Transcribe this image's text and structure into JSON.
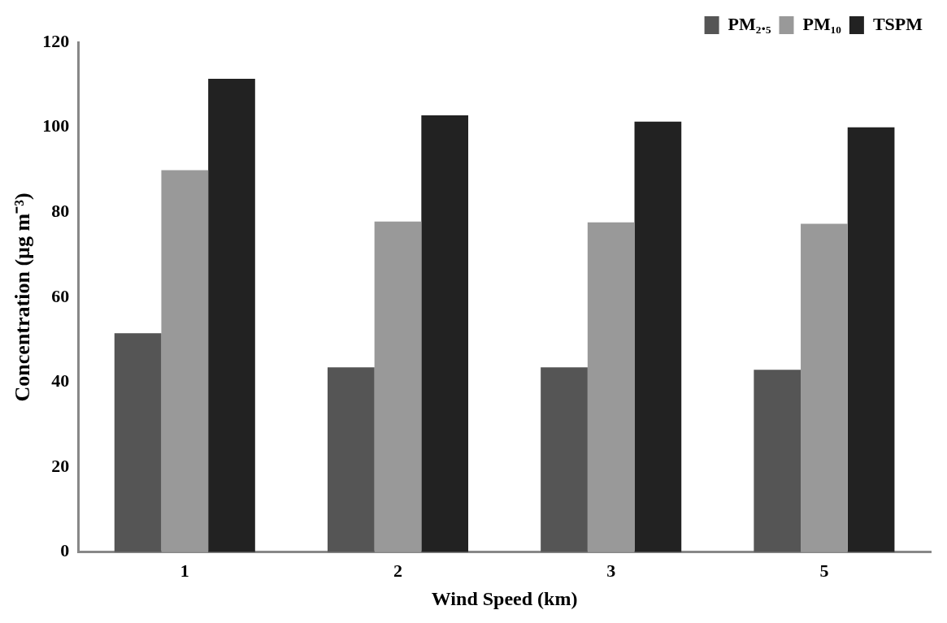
{
  "chart_data": {
    "type": "bar",
    "xlabel": "Wind Speed (km)",
    "ylabel": "Concentration (µg m⁻³)",
    "categories": [
      "1",
      "2",
      "3",
      "5"
    ],
    "series": [
      {
        "name": "PM₂.₅",
        "color": "#555555",
        "values": [
          51.5,
          43.5,
          43.5,
          42.9
        ]
      },
      {
        "name": "PM₁₀",
        "color": "#999999",
        "values": [
          89.9,
          77.8,
          77.6,
          77.3
        ]
      },
      {
        "name": "TSPM",
        "color": "#222222",
        "values": [
          111.4,
          102.8,
          101.3,
          100.0
        ]
      }
    ],
    "ylim": [
      0,
      120
    ],
    "yticks": [
      0,
      20,
      40,
      60,
      80,
      100,
      120
    ],
    "grid": false,
    "legend": "top right"
  }
}
